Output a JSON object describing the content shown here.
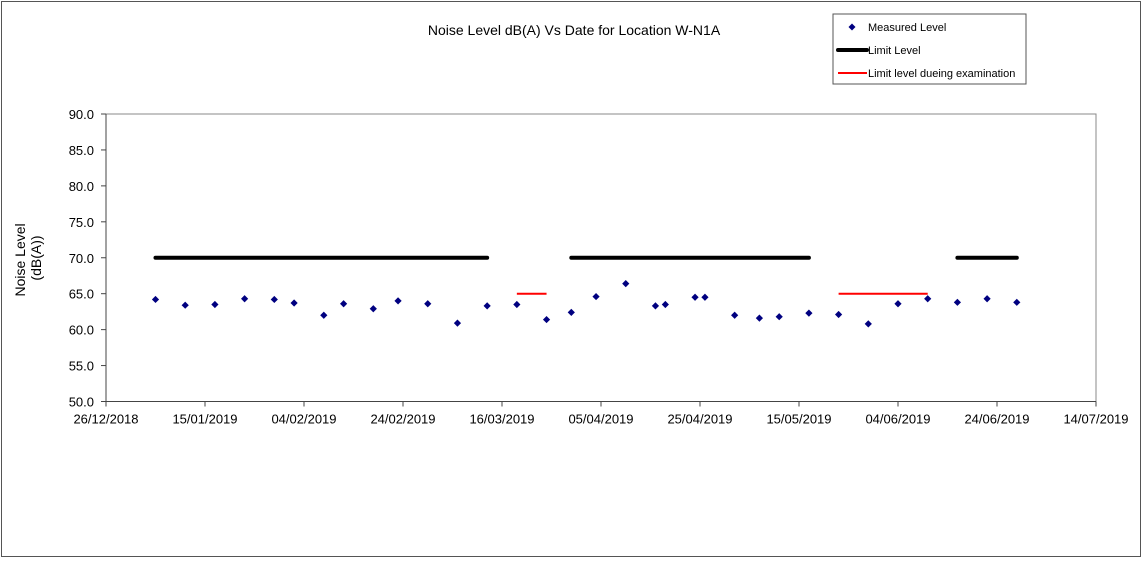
{
  "chart_data": {
    "type": "scatter",
    "title": "Noise Level dB(A) Vs Date for Location W-N1A",
    "xlabel": "",
    "ylabel": "Noise Level (dB(A))",
    "ylim": [
      50,
      90
    ],
    "yticks": [
      "50.0",
      "55.0",
      "60.0",
      "65.0",
      "70.0",
      "75.0",
      "80.0",
      "85.0",
      "90.0"
    ],
    "xlim": [
      "2018-12-26",
      "2019-07-14"
    ],
    "xticks": [
      "26/12/2018",
      "15/01/2019",
      "04/02/2019",
      "24/02/2019",
      "16/03/2019",
      "05/04/2019",
      "25/04/2019",
      "15/05/2019",
      "04/06/2019",
      "24/06/2019",
      "14/07/2019"
    ],
    "grid": false,
    "legend_placement": "top-right",
    "legend": [
      "Measured Level",
      "Limit Level",
      "Limit level dueing examination"
    ],
    "colors": {
      "measured": "#000080",
      "limit": "#000000",
      "limit_exam": "#ff0000"
    },
    "series": [
      {
        "name": "Measured Level",
        "kind": "points",
        "points": [
          {
            "x": "2019-01-05",
            "y": 64.2
          },
          {
            "x": "2019-01-11",
            "y": 63.4
          },
          {
            "x": "2019-01-17",
            "y": 63.5
          },
          {
            "x": "2019-01-23",
            "y": 64.3
          },
          {
            "x": "2019-01-29",
            "y": 64.2
          },
          {
            "x": "2019-02-02",
            "y": 63.7
          },
          {
            "x": "2019-02-08",
            "y": 62.0
          },
          {
            "x": "2019-02-12",
            "y": 63.6
          },
          {
            "x": "2019-02-18",
            "y": 62.9
          },
          {
            "x": "2019-02-23",
            "y": 64.0
          },
          {
            "x": "2019-03-01",
            "y": 63.6
          },
          {
            "x": "2019-03-07",
            "y": 60.9
          },
          {
            "x": "2019-03-13",
            "y": 63.3
          },
          {
            "x": "2019-03-19",
            "y": 63.5
          },
          {
            "x": "2019-03-25",
            "y": 61.4
          },
          {
            "x": "2019-03-30",
            "y": 62.4
          },
          {
            "x": "2019-04-04",
            "y": 64.6
          },
          {
            "x": "2019-04-10",
            "y": 66.4
          },
          {
            "x": "2019-04-16",
            "y": 63.3
          },
          {
            "x": "2019-04-18",
            "y": 63.5
          },
          {
            "x": "2019-04-24",
            "y": 64.5
          },
          {
            "x": "2019-04-26",
            "y": 64.5
          },
          {
            "x": "2019-05-02",
            "y": 62.0
          },
          {
            "x": "2019-05-07",
            "y": 61.6
          },
          {
            "x": "2019-05-11",
            "y": 61.8
          },
          {
            "x": "2019-05-17",
            "y": 62.3
          },
          {
            "x": "2019-05-23",
            "y": 62.1
          },
          {
            "x": "2019-05-29",
            "y": 60.8
          },
          {
            "x": "2019-06-04",
            "y": 63.6
          },
          {
            "x": "2019-06-10",
            "y": 64.3
          },
          {
            "x": "2019-06-16",
            "y": 63.8
          },
          {
            "x": "2019-06-22",
            "y": 64.3
          },
          {
            "x": "2019-06-28",
            "y": 63.8
          }
        ]
      },
      {
        "name": "Limit Level",
        "kind": "segments",
        "segments": [
          {
            "x0": "2019-01-05",
            "x1": "2019-03-13",
            "y": 70
          },
          {
            "x0": "2019-03-30",
            "x1": "2019-05-17",
            "y": 70
          },
          {
            "x0": "2019-06-16",
            "x1": "2019-06-28",
            "y": 70
          }
        ]
      },
      {
        "name": "Limit level dueing examination",
        "kind": "segments",
        "segments": [
          {
            "x0": "2019-03-19",
            "x1": "2019-03-25",
            "y": 65
          },
          {
            "x0": "2019-05-23",
            "x1": "2019-06-10",
            "y": 65
          }
        ]
      }
    ]
  }
}
